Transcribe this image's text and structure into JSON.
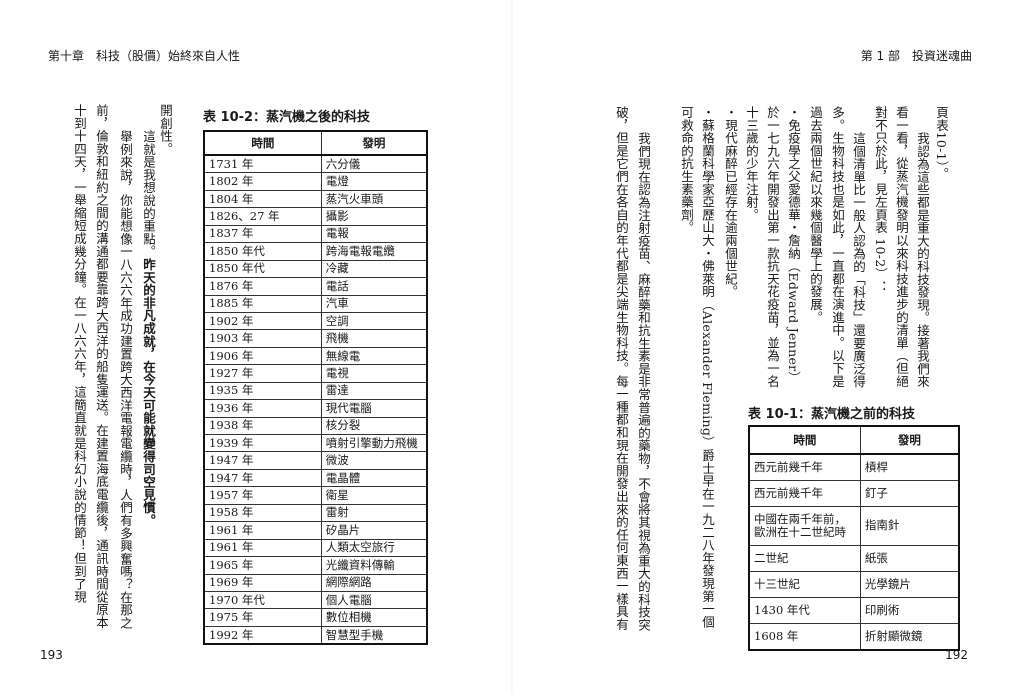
{
  "left_page": {
    "header": "第十章　科技（股價）始終來自人性",
    "page_number": "193",
    "columns": [
      {
        "text": "開創性。"
      },
      {
        "text": "這就是我想說的重點。",
        "bold_text": "昨天的非凡成就，在今天可能就變得司空見慣。"
      },
      {
        "text": "舉例來說，你能想像一八六六年成功建置跨大西洋電報電纜時，人們有多興奮嗎？在那之"
      },
      {
        "text": "前，倫敦和紐約之間的溝通都要靠跨大西洋的船隻運送。在建置海底電纜後，通訊時間從原本"
      },
      {
        "text": "十到十四天，一舉縮短成幾分鐘。在一八六六年，這簡直就是科幻小說的情節！但到了現"
      }
    ],
    "table": {
      "title": "表 10-2：蒸汽機之後的科技",
      "headers": [
        "時間",
        "發明"
      ],
      "rows": [
        [
          "1731 年",
          "六分儀"
        ],
        [
          "1802 年",
          "電燈"
        ],
        [
          "1804 年",
          "蒸汽火車頭"
        ],
        [
          "1826、27 年",
          "攝影"
        ],
        [
          "1837 年",
          "電報"
        ],
        [
          "1850 年代",
          "跨海電報電纜"
        ],
        [
          "1850 年代",
          "冷藏"
        ],
        [
          "1876 年",
          "電話"
        ],
        [
          "1885 年",
          "汽車"
        ],
        [
          "1902 年",
          "空調"
        ],
        [
          "1903 年",
          "飛機"
        ],
        [
          "1906 年",
          "無線電"
        ],
        [
          "1927 年",
          "電視"
        ],
        [
          "1935 年",
          "雷達"
        ],
        [
          "1936 年",
          "現代電腦"
        ],
        [
          "1938 年",
          "核分裂"
        ],
        [
          "1939 年",
          "噴射引擎動力飛機"
        ],
        [
          "1947 年",
          "微波"
        ],
        [
          "1947 年",
          "電晶體"
        ],
        [
          "1957 年",
          "衛星"
        ],
        [
          "1958 年",
          "雷射"
        ],
        [
          "1961 年",
          "矽晶片"
        ],
        [
          "1961 年",
          "人類太空旅行"
        ],
        [
          "1965 年",
          "光纖資料傳輸"
        ],
        [
          "1969 年",
          "網際網路"
        ],
        [
          "1970 年代",
          "個人電腦"
        ],
        [
          "1975 年",
          "數位相機"
        ],
        [
          "1992 年",
          "智慧型手機"
        ]
      ]
    }
  },
  "right_page": {
    "header": "第 1 部　投資迷魂曲",
    "page_number": "192",
    "columns": [
      {
        "text": "頁表10-1）。"
      },
      {
        "text": "我認為這些都是重大的科技發現。接著我們來"
      },
      {
        "text": "看一看，從蒸汽機發明以來科技進步的清單（但絕"
      },
      {
        "text": "對不只於此，見左頁表 10-2）："
      },
      {
        "text": "這個清單比一般人認為的「科技」還要廣泛得"
      },
      {
        "text": "多。生物科技也是如此，一直都在演進中。以下是"
      },
      {
        "text": "過去兩個世紀以來幾個醫學上的發展。"
      },
      {
        "text": "・免疫學之父愛德華・詹納（Edward Jenner）"
      },
      {
        "text": "於一七九六年開發出第一款抗天花疫苗，並為一名"
      },
      {
        "text": "十三歲的少年注射。"
      },
      {
        "text": "・現代麻醉已經存在逾兩個世紀。"
      },
      {
        "text": "・蘇格蘭科學家亞歷山大・佛萊明（Alexander Fleming）爵士早在一九二八年發現第一個"
      },
      {
        "text": "可救命的抗生素藥劑。"
      },
      {
        "text": "我們現在認為注射疫苗、麻醉藥和抗生素是非常普遍的藥物，不會將其視為重大的科技突"
      },
      {
        "text": "破，但是它們在各自的年代都是尖端生物科技。每一種都和現在開發出來的任何東西一樣具有"
      }
    ],
    "table": {
      "title": "表 10-1：蒸汽機之前的科技",
      "headers": [
        "時間",
        "發明"
      ],
      "rows": [
        [
          "西元前幾千年",
          "槓桿"
        ],
        [
          "西元前幾千年",
          "釘子"
        ],
        [
          "中國在兩千年前，\n歐洲在十二世紀時",
          "指南針"
        ],
        [
          "二世紀",
          "紙張"
        ],
        [
          "十三世紀",
          "光學鏡片"
        ],
        [
          "1430 年代",
          "印刷術"
        ],
        [
          "1608 年",
          "折射顯微鏡"
        ]
      ]
    }
  }
}
